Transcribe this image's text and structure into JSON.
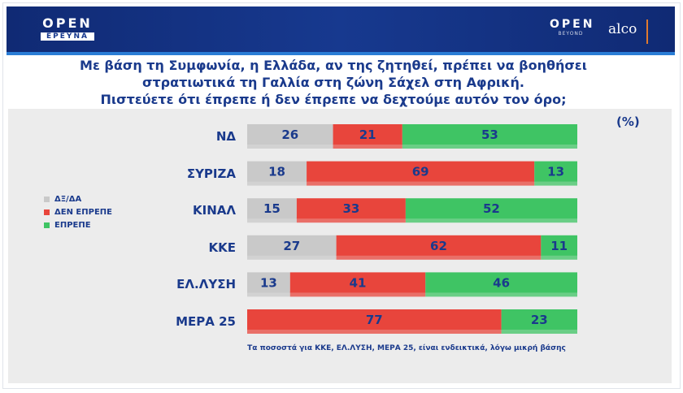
{
  "header": {
    "left_logo": "OPEN",
    "left_logo_sub": "ΕΡΕΥΝΑ",
    "right_logo": "OPEN",
    "right_logo_sub": "BEYOND",
    "partner_logo": "alco"
  },
  "title": {
    "line1": "Με βάση τη Συμφωνία, η Ελλάδα, αν της ζητηθεί, πρέπει να βοηθήσει",
    "line2": "στρατιωτικά τη Γαλλία στη ζώνη Σάχελ στη Αφρική.",
    "line3": "Πιστεύετε ότι έπρεπε ή δεν έπρεπε να δεχτούμε αυτόν τον όρο;"
  },
  "unit_label": "(%)",
  "footnote": "Τα ποσοστά για ΚΚΕ, ΕΛ.ΛΥΣΗ, ΜΕΡΑ 25, είναι ενδεικτικά, λόγω μικρή βάσης",
  "colors": {
    "gray": "#c9c9c9",
    "red": "#e8453c",
    "green": "#3fc464",
    "header_blue": "#17398f",
    "text_blue": "#1a3a8c"
  },
  "chart_data": {
    "type": "bar",
    "orientation": "horizontal-stacked",
    "categories": [
      "ΝΔ",
      "ΣΥΡΙΖΑ",
      "ΚΙΝΑΛ",
      "ΚΚΕ",
      "ΕΛ.ΛΥΣΗ",
      "ΜΕΡΑ 25"
    ],
    "series": [
      {
        "name": "ΔΞ/ΔΑ",
        "color": "#c9c9c9",
        "values": [
          26,
          18,
          15,
          27,
          13,
          0
        ]
      },
      {
        "name": "ΔΕΝ ΕΠΡΕΠΕ",
        "color": "#e8453c",
        "values": [
          21,
          69,
          33,
          62,
          41,
          77
        ]
      },
      {
        "name": "ΕΠΡΕΠΕ",
        "color": "#3fc464",
        "values": [
          53,
          13,
          52,
          11,
          46,
          23
        ]
      }
    ],
    "xlim": [
      0,
      100
    ],
    "legend_position": "left"
  }
}
